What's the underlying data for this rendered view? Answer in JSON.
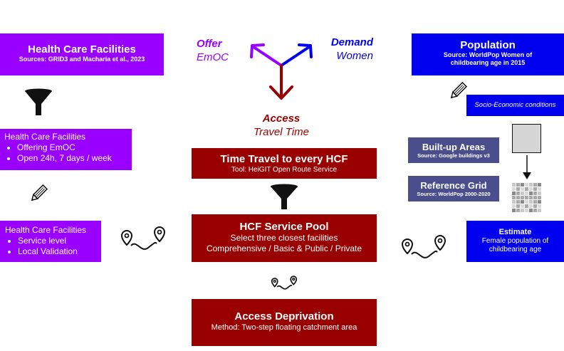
{
  "colors": {
    "purple": "#9900ff",
    "blue": "#0000ee",
    "red": "#990000",
    "slate": "#4a4e8c"
  },
  "top": {
    "offer_line1": "Offer",
    "offer_line2": "EmOC",
    "demand_line1": "Demand",
    "demand_line2": "Women",
    "access_line1": "Access",
    "access_line2": "Travel Time"
  },
  "left": {
    "hcf_title": "Health Care Facilities",
    "hcf_sources": "Sources: GRID3 and Macharia et al., 2023",
    "filter1_title": "Health Care Facilities",
    "filter1_items": [
      "Offering EmOC",
      "Open 24h, 7 days / week"
    ],
    "filter2_title": "Health Care Facilities",
    "filter2_items": [
      "Service level",
      "Local Validation"
    ]
  },
  "center": {
    "travel_title": "Time Travel to every HCF",
    "travel_sub": "Tool: HeiGIT Open Route Service",
    "pool_title": "HCF Service Pool",
    "pool_line1": "Select three closest facilities",
    "pool_line2": "Comprehensive / Basic & Public / Private",
    "deprivation_title": "Access Deprivation",
    "deprivation_sub": "Method: Two-step floating catchment area"
  },
  "right": {
    "population_title": "Population",
    "population_sub": "Source: WorldPop Women of childbearing age in 2015",
    "socio": "Socio-Economic conditions",
    "builtup_title": "Built-up Areas",
    "builtup_sub": "Source: Google buildings v3",
    "grid_title": "Reference Grid",
    "grid_sub": "Source: WorldPop 2000-2020",
    "estimate_title": "Estimate",
    "estimate_sub": "Female population of childbearing age"
  },
  "icons": [
    "funnel-icon",
    "pencil-icon",
    "route-icon",
    "tri-arrow-icon",
    "grid-icon",
    "square-icon",
    "down-arrow-icon"
  ]
}
